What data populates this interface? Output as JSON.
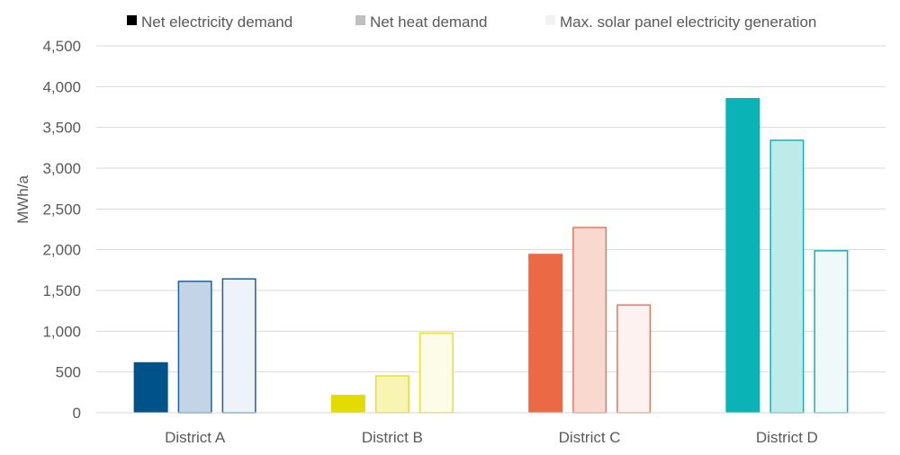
{
  "chart_data": {
    "type": "bar",
    "title": "",
    "xlabel": "",
    "ylabel": "MWh/a",
    "ylim": [
      0,
      4500
    ],
    "yticks": [
      0,
      500,
      1000,
      1500,
      2000,
      2500,
      3000,
      3500,
      4000,
      4500
    ],
    "ytick_labels": [
      "0",
      "500",
      "1,000",
      "1,500",
      "2,000",
      "2,500",
      "3,000",
      "3,500",
      "4,000",
      "4,500"
    ],
    "grid": true,
    "legend_position": "top",
    "categories": [
      "District A",
      "District B",
      "District C",
      "District D"
    ],
    "series": [
      {
        "name": "Net electricity demand",
        "legend_color": "#000000",
        "values": [
          620,
          220,
          1950,
          3860
        ]
      },
      {
        "name": "Net heat demand",
        "legend_color": "#bfbfbf",
        "values": [
          1620,
          460,
          2280,
          3350
        ]
      },
      {
        "name": "Max. solar panel electricity generation",
        "legend_color": "#f2f2f2",
        "values": [
          1650,
          985,
          1330,
          1995
        ]
      }
    ],
    "category_colors": [
      {
        "solid": "#00538a",
        "stroke": "#1f5f99",
        "fills": [
          "#00538a",
          "#c2d4e5",
          "#eef3f9"
        ]
      },
      {
        "solid": "#e3dc00",
        "stroke": "#e6df2e",
        "fills": [
          "#e3dc00",
          "#f7f4b4",
          "#fdfce9"
        ]
      },
      {
        "solid": "#eb6a45",
        "stroke": "#e07a5d",
        "fills": [
          "#eb6a45",
          "#f9d8cf",
          "#fdf2ef"
        ]
      },
      {
        "solid": "#0ab3b5",
        "stroke": "#16b0b4",
        "fills": [
          "#0ab3b5",
          "#bfeaea",
          "#eefafa"
        ]
      }
    ]
  }
}
